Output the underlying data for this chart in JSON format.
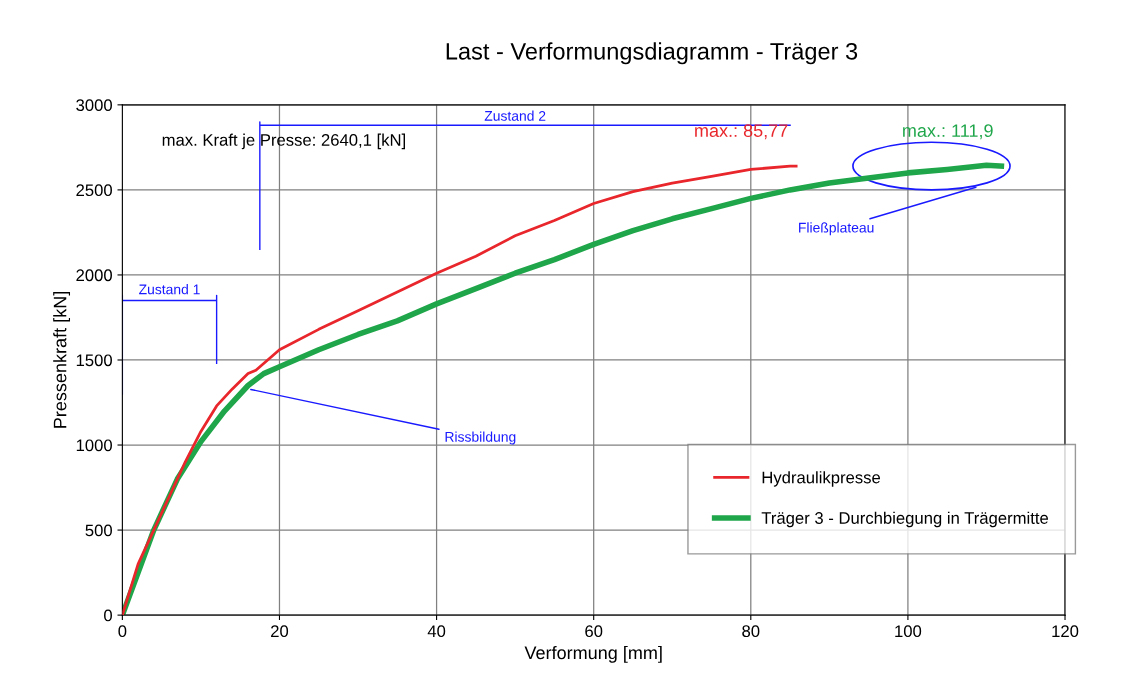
{
  "chart_data": {
    "type": "line",
    "title": "Last - Verformungsdiagramm - Träger 3",
    "xlabel": "Verformung [mm]",
    "ylabel": "Pressenkraft [kN]",
    "xlim": [
      0,
      120
    ],
    "xticks": [
      0,
      20,
      40,
      60,
      80,
      100,
      120
    ],
    "ylim": [
      0,
      3000
    ],
    "yticks": [
      0,
      500,
      1000,
      1500,
      2000,
      2500,
      3000
    ],
    "grid": true,
    "legend": "bottom right",
    "marker": "none",
    "line_style": "solid",
    "series": [
      {
        "name": "Hydraulikpresse",
        "color": "#e8262b",
        "x": [
          0,
          2,
          5,
          8,
          10,
          12,
          14,
          16,
          17,
          20,
          25,
          30,
          35,
          40,
          45,
          50,
          55,
          60,
          65,
          70,
          75,
          80,
          85,
          85.77
        ],
        "values": [
          0,
          300,
          600,
          900,
          1080,
          1230,
          1330,
          1420,
          1440,
          1560,
          1680,
          1790,
          1900,
          2010,
          2110,
          2230,
          2320,
          2420,
          2490,
          2540,
          2580,
          2620,
          2640,
          2640
        ]
      },
      {
        "name": "Träger 3 - Durchbiegung in Trägermitte",
        "color": "#1fa64a",
        "x": [
          0,
          4,
          7,
          10,
          13,
          16,
          18,
          20,
          25,
          30,
          35,
          40,
          45,
          50,
          55,
          60,
          65,
          70,
          75,
          80,
          85,
          90,
          95,
          100,
          105,
          110,
          111.9
        ],
        "values": [
          0,
          500,
          800,
          1020,
          1200,
          1350,
          1420,
          1460,
          1560,
          1650,
          1730,
          1830,
          1920,
          2010,
          2090,
          2180,
          2260,
          2330,
          2390,
          2450,
          2500,
          2540,
          2570,
          2600,
          2620,
          2645,
          2640
        ]
      }
    ],
    "annotations": [
      "max. Kraft je Presse: 2640,1 [kN]",
      {
        "text": "max.: 85,77",
        "x": 85.77,
        "y": 2640
      },
      {
        "text": "max.: 111,9",
        "x": 111.9,
        "y": 2640
      },
      "Zustand 1",
      "Zustand 2",
      {
        "text": "Rissbildung",
        "x": 16,
        "y": 1330
      },
      "Fließplateau"
    ]
  }
}
